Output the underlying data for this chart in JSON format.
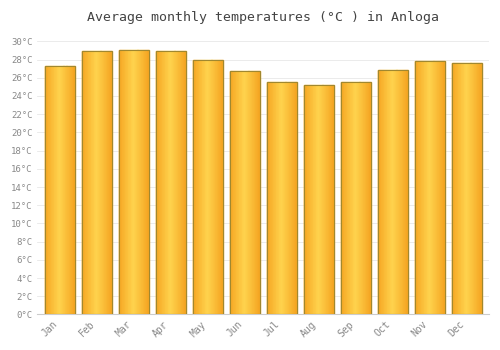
{
  "title": "Average monthly temperatures (°C ) in Anloga",
  "months": [
    "Jan",
    "Feb",
    "Mar",
    "Apr",
    "May",
    "Jun",
    "Jul",
    "Aug",
    "Sep",
    "Oct",
    "Nov",
    "Dec"
  ],
  "temperatures": [
    27.3,
    28.9,
    29.0,
    28.9,
    27.9,
    26.7,
    25.5,
    25.2,
    25.5,
    26.9,
    27.8,
    27.6
  ],
  "bar_color_center": "#FFD44E",
  "bar_color_edge": "#F5A623",
  "bar_border_color": "#A08830",
  "background_color": "#FFFFFF",
  "grid_color": "#E8E8E8",
  "text_color": "#888888",
  "title_color": "#444444",
  "ylim": [
    0,
    31
  ],
  "yticks": [
    0,
    2,
    4,
    6,
    8,
    10,
    12,
    14,
    16,
    18,
    20,
    22,
    24,
    26,
    28,
    30
  ]
}
